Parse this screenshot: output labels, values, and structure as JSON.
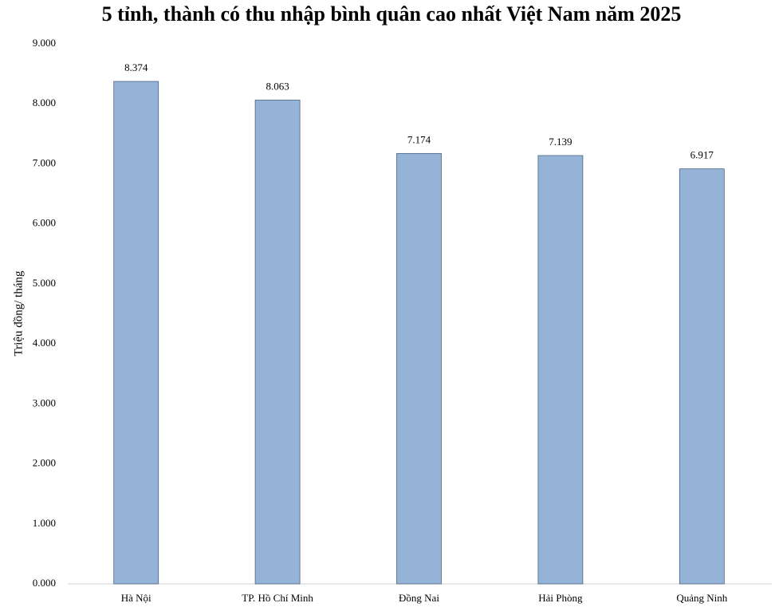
{
  "chart_data": {
    "type": "bar",
    "title": "5 tỉnh, thành có thu nhập bình quân cao nhất Việt Nam năm 2025",
    "y_label": "Triệu đồng/ tháng",
    "categories": [
      "Hà Nội",
      "TP. Hồ Chí Minh",
      "Đồng Nai",
      "Hải Phòng",
      "Quảng Ninh"
    ],
    "values": [
      8.374,
      8.063,
      7.174,
      7.139,
      6.917
    ],
    "color": "#95b3d7",
    "ylim": [
      0,
      9
    ],
    "yticks": [
      {
        "value": 0,
        "label": "0.000"
      },
      {
        "value": 1,
        "label": "1.000"
      },
      {
        "value": 2,
        "label": "2.000"
      },
      {
        "value": 3,
        "label": "3.000"
      },
      {
        "value": 4,
        "label": "4.000"
      },
      {
        "value": 5,
        "label": "5.000"
      },
      {
        "value": 6,
        "label": "6.000"
      },
      {
        "value": 7,
        "label": "7.000"
      },
      {
        "value": 8,
        "label": "8.000"
      },
      {
        "value": 9,
        "label": "9.000"
      }
    ],
    "grid": false
  }
}
